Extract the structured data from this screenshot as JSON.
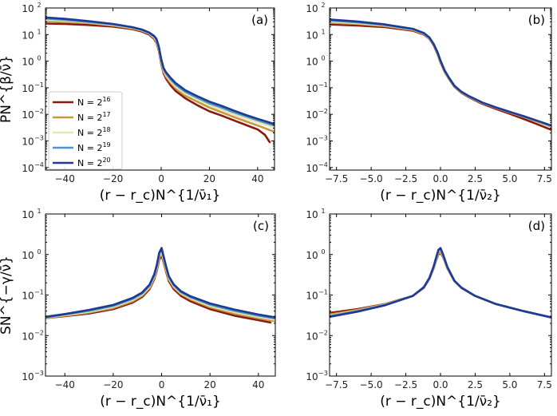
{
  "chart_data": [
    {
      "type": "line",
      "panel_label": "(a)",
      "ylabel": "PN^{β/ν̄}",
      "xlabel": "(r − r_c)N^{1/ν̄₁}",
      "yscale": "log",
      "xlim": [
        -48,
        47
      ],
      "ylim": [
        8e-05,
        100
      ],
      "xticks": [
        -40,
        -20,
        0,
        20,
        40
      ],
      "xtick_labels": [
        "−40",
        "−20",
        "0",
        "20",
        "40"
      ],
      "yticks": [
        0.0001,
        0.001,
        0.01,
        0.1,
        1,
        10,
        100
      ],
      "ytick_labels": [
        "10",
        "10",
        "10",
        "10",
        "10",
        "10",
        "10"
      ],
      "ytick_exps": [
        "−4",
        "−3",
        "−2",
        "−1",
        "0",
        "1",
        "2"
      ],
      "legend_position": "lower-left",
      "series": [
        {
          "name": "2",
          "exp": "16",
          "color": "#8b1a0e",
          "x": [
            -48,
            -40,
            -30,
            -20,
            -12,
            -8,
            -5,
            -3,
            -2,
            -1,
            0,
            1,
            2,
            4,
            6,
            10,
            15,
            20,
            25,
            30,
            35,
            40,
            43,
            45
          ],
          "y": [
            26,
            25,
            23,
            20,
            16,
            13,
            10,
            7,
            5,
            2.5,
            0.8,
            0.35,
            0.22,
            0.12,
            0.075,
            0.04,
            0.022,
            0.013,
            0.009,
            0.006,
            0.004,
            0.0027,
            0.0017,
            0.0009
          ]
        },
        {
          "name": "2",
          "exp": "17",
          "color": "#c8973e",
          "x": [
            -48,
            -40,
            -30,
            -20,
            -12,
            -8,
            -5,
            -3,
            -2,
            -1,
            0,
            1,
            2,
            4,
            6,
            10,
            15,
            20,
            25,
            30,
            35,
            40,
            47
          ],
          "y": [
            32,
            30,
            27,
            22,
            17,
            14,
            11,
            7.5,
            5.5,
            2.8,
            0.9,
            0.4,
            0.26,
            0.15,
            0.095,
            0.05,
            0.03,
            0.018,
            0.012,
            0.008,
            0.0055,
            0.0038,
            0.0022
          ]
        },
        {
          "name": "2",
          "exp": "18",
          "color": "#e6e7b5",
          "x": [
            -48,
            -40,
            -30,
            -20,
            -12,
            -8,
            -5,
            -3,
            -2,
            -1,
            0,
            1,
            2,
            4,
            6,
            10,
            15,
            20,
            25,
            30,
            35,
            40,
            47
          ],
          "y": [
            36,
            33,
            29,
            23,
            18,
            14.5,
            11,
            8,
            6,
            3,
            1,
            0.45,
            0.3,
            0.17,
            0.11,
            0.06,
            0.036,
            0.022,
            0.015,
            0.01,
            0.007,
            0.005,
            0.0032
          ]
        },
        {
          "name": "2",
          "exp": "19",
          "color": "#4a95c9",
          "x": [
            -48,
            -40,
            -30,
            -20,
            -12,
            -8,
            -5,
            -3,
            -2,
            -1,
            0,
            1,
            2,
            4,
            6,
            10,
            15,
            20,
            25,
            30,
            35,
            40,
            47
          ],
          "y": [
            40,
            36,
            30,
            24,
            18.5,
            15,
            11.5,
            8.5,
            6.5,
            3.3,
            1.1,
            0.5,
            0.34,
            0.2,
            0.13,
            0.07,
            0.042,
            0.026,
            0.018,
            0.012,
            0.0085,
            0.006,
            0.0038
          ]
        },
        {
          "name": "2",
          "exp": "20",
          "color": "#1f3a93",
          "x": [
            -48,
            -40,
            -30,
            -20,
            -12,
            -8,
            -5,
            -3,
            -2,
            -1,
            0,
            1,
            2,
            4,
            6,
            10,
            15,
            20,
            25,
            30,
            35,
            40,
            47
          ],
          "y": [
            44,
            39,
            32,
            25,
            19,
            15.5,
            12,
            9,
            7,
            3.6,
            1.2,
            0.55,
            0.38,
            0.23,
            0.15,
            0.08,
            0.048,
            0.03,
            0.021,
            0.014,
            0.0095,
            0.0068,
            0.0043
          ]
        }
      ]
    },
    {
      "type": "line",
      "panel_label": "(b)",
      "ylabel": "",
      "xlabel": "(r − r_c)N^{1/ν̄₂}",
      "yscale": "log",
      "xlim": [
        -8,
        8
      ],
      "ylim": [
        8e-05,
        100
      ],
      "xticks": [
        -7.5,
        -5,
        -2.5,
        0,
        2.5,
        5,
        7.5
      ],
      "xtick_labels": [
        "−7.5",
        "−5.0",
        "−2.5",
        "0.0",
        "2.5",
        "5.0",
        "7.5"
      ],
      "yticks": [
        0.0001,
        0.001,
        0.01,
        0.1,
        1,
        10,
        100
      ],
      "ytick_labels": [
        "10",
        "10",
        "10",
        "10",
        "10",
        "10",
        "10"
      ],
      "ytick_exps": [
        "−4",
        "−3",
        "−2",
        "−1",
        "0",
        "1",
        "2"
      ],
      "series": [
        {
          "color": "#8b1a0e",
          "x": [
            -8,
            -6,
            -4,
            -2,
            -1.2,
            -0.8,
            -0.5,
            -0.2,
            0,
            0.3,
            0.6,
            1,
            1.5,
            2,
            3,
            4,
            5,
            6,
            7,
            8
          ],
          "y": [
            24,
            22,
            19,
            14,
            10,
            7,
            4,
            1.8,
            0.9,
            0.4,
            0.22,
            0.11,
            0.065,
            0.045,
            0.025,
            0.016,
            0.0105,
            0.0067,
            0.0042,
            0.0026
          ]
        },
        {
          "color": "#c8973e",
          "x": [
            -8,
            -6,
            -4,
            -2,
            -1.2,
            -0.8,
            -0.5,
            -0.2,
            0,
            0.3,
            0.6,
            1,
            1.5,
            2,
            3,
            4,
            5,
            6,
            7,
            8
          ],
          "y": [
            28,
            25,
            21,
            15,
            10.5,
            7.2,
            4.2,
            1.9,
            0.95,
            0.42,
            0.23,
            0.115,
            0.068,
            0.047,
            0.027,
            0.0175,
            0.0118,
            0.008,
            0.0053,
            0.0034
          ]
        },
        {
          "color": "#e6e7b5",
          "x": [
            -8,
            -6,
            -4,
            -2,
            -1.2,
            -0.8,
            -0.5,
            -0.2,
            0,
            0.3,
            0.6,
            1,
            1.5,
            2,
            3,
            4,
            5,
            6,
            7,
            8
          ],
          "y": [
            31,
            27,
            22,
            15.5,
            11,
            7.4,
            4.3,
            2,
            1,
            0.43,
            0.235,
            0.117,
            0.069,
            0.048,
            0.027,
            0.0178,
            0.012,
            0.0082,
            0.0055,
            0.0036
          ]
        },
        {
          "color": "#4a95c9",
          "x": [
            -8,
            -6,
            -4,
            -2,
            -1.2,
            -0.8,
            -0.5,
            -0.2,
            0,
            0.3,
            0.6,
            1,
            1.5,
            2,
            3,
            4,
            5,
            6,
            7,
            8
          ],
          "y": [
            34,
            29,
            23,
            16,
            11.2,
            7.6,
            4.4,
            2.05,
            1.02,
            0.44,
            0.24,
            0.118,
            0.07,
            0.049,
            0.028,
            0.018,
            0.0122,
            0.0083,
            0.0056,
            0.0037
          ]
        },
        {
          "color": "#1f3a93",
          "x": [
            -8,
            -6,
            -4,
            -2,
            -1.2,
            -0.8,
            -0.5,
            -0.2,
            0,
            0.3,
            0.6,
            1,
            1.5,
            2,
            3,
            4,
            5,
            6,
            7,
            8
          ],
          "y": [
            37,
            31,
            24,
            16.5,
            11.5,
            7.8,
            4.5,
            2.1,
            1.05,
            0.45,
            0.245,
            0.12,
            0.071,
            0.05,
            0.028,
            0.0182,
            0.0124,
            0.0085,
            0.0057,
            0.0038
          ]
        }
      ]
    },
    {
      "type": "line",
      "panel_label": "(c)",
      "ylabel": "SN^{−γ/ν̄}",
      "xlabel": "(r − r_c)N^{1/ν̄₁}",
      "yscale": "log",
      "xlim": [
        -48,
        47
      ],
      "ylim": [
        0.001,
        10
      ],
      "xticks": [
        -40,
        -20,
        0,
        20,
        40
      ],
      "xtick_labels": [
        "−40",
        "−20",
        "0",
        "20",
        "40"
      ],
      "yticks": [
        0.001,
        0.01,
        0.1,
        1,
        10
      ],
      "ytick_labels": [
        "10",
        "10",
        "10",
        "10",
        "10"
      ],
      "ytick_exps": [
        "−3",
        "−2",
        "−1",
        "0",
        "1"
      ],
      "series": [
        {
          "color": "#8b1a0e",
          "x": [
            -48,
            -40,
            -30,
            -20,
            -12,
            -8,
            -5,
            -3,
            -2,
            -1,
            0,
            1,
            2,
            3,
            5,
            8,
            12,
            20,
            30,
            40,
            45
          ],
          "y": [
            0.027,
            0.03,
            0.035,
            0.045,
            0.065,
            0.09,
            0.14,
            0.25,
            0.4,
            0.75,
            0.95,
            0.6,
            0.35,
            0.22,
            0.14,
            0.095,
            0.07,
            0.045,
            0.031,
            0.024,
            0.021
          ]
        },
        {
          "color": "#c8973e",
          "x": [
            -48,
            -40,
            -30,
            -20,
            -12,
            -8,
            -5,
            -3,
            -2,
            -1,
            0,
            1,
            2,
            3,
            5,
            8,
            12,
            20,
            30,
            40,
            47
          ],
          "y": [
            0.027,
            0.031,
            0.037,
            0.048,
            0.07,
            0.097,
            0.15,
            0.27,
            0.44,
            0.85,
            1.05,
            0.65,
            0.38,
            0.24,
            0.155,
            0.105,
            0.078,
            0.05,
            0.035,
            0.027,
            0.0225
          ]
        },
        {
          "color": "#e6e7b5",
          "x": [
            -48,
            -40,
            -30,
            -20,
            -12,
            -8,
            -5,
            -3,
            -2,
            -1,
            0,
            1,
            2,
            3,
            5,
            8,
            12,
            20,
            30,
            40,
            47
          ],
          "y": [
            0.028,
            0.032,
            0.039,
            0.051,
            0.075,
            0.104,
            0.16,
            0.29,
            0.48,
            0.95,
            1.2,
            0.72,
            0.42,
            0.26,
            0.165,
            0.112,
            0.083,
            0.054,
            0.038,
            0.029,
            0.0245
          ]
        },
        {
          "color": "#4a95c9",
          "x": [
            -48,
            -40,
            -30,
            -20,
            -12,
            -8,
            -5,
            -3,
            -2,
            -1,
            0,
            1,
            2,
            3,
            5,
            8,
            12,
            20,
            30,
            40,
            47
          ],
          "y": [
            0.028,
            0.033,
            0.041,
            0.054,
            0.08,
            0.11,
            0.17,
            0.31,
            0.52,
            1.05,
            1.35,
            0.78,
            0.45,
            0.28,
            0.175,
            0.118,
            0.088,
            0.058,
            0.041,
            0.031,
            0.0265
          ]
        },
        {
          "color": "#1f3a93",
          "x": [
            -48,
            -40,
            -30,
            -20,
            -12,
            -8,
            -5,
            -3,
            -2,
            -1,
            0,
            1,
            2,
            3,
            5,
            8,
            12,
            20,
            30,
            40,
            47
          ],
          "y": [
            0.029,
            0.034,
            0.043,
            0.057,
            0.085,
            0.116,
            0.18,
            0.33,
            0.55,
            1.1,
            1.45,
            0.82,
            0.47,
            0.29,
            0.183,
            0.124,
            0.093,
            0.062,
            0.044,
            0.033,
            0.028
          ]
        }
      ]
    },
    {
      "type": "line",
      "panel_label": "(d)",
      "ylabel": "",
      "xlabel": "(r − r_c)N^{1/ν̄₂}",
      "yscale": "log",
      "xlim": [
        -8,
        8
      ],
      "ylim": [
        0.001,
        10
      ],
      "xticks": [
        -7.5,
        -5,
        -2.5,
        0,
        2.5,
        5,
        7.5
      ],
      "xtick_labels": [
        "−7.5",
        "−5.0",
        "−2.5",
        "0.0",
        "2.5",
        "5.0",
        "7.5"
      ],
      "yticks": [
        0.001,
        0.01,
        0.1,
        1,
        10
      ],
      "ytick_labels": [
        "10",
        "10",
        "10",
        "10",
        "10"
      ],
      "ytick_exps": [
        "−3",
        "−2",
        "−1",
        "0",
        "1"
      ],
      "series": [
        {
          "color": "#8b1a0e",
          "x": [
            -8,
            -6,
            -4,
            -2,
            -1.2,
            -0.8,
            -0.5,
            -0.3,
            -0.15,
            0,
            0.2,
            0.5,
            1,
            1.5,
            2.5,
            4,
            6,
            8
          ],
          "y": [
            0.036,
            0.045,
            0.06,
            0.095,
            0.15,
            0.25,
            0.45,
            0.75,
            1.0,
            1.1,
            0.85,
            0.45,
            0.22,
            0.15,
            0.095,
            0.06,
            0.04,
            0.028
          ]
        },
        {
          "color": "#c8973e",
          "x": [
            -8,
            -6,
            -4,
            -2,
            -1.2,
            -0.8,
            -0.5,
            -0.3,
            -0.15,
            0,
            0.2,
            0.5,
            1,
            1.5,
            2.5,
            4,
            6,
            8
          ],
          "y": [
            0.033,
            0.043,
            0.059,
            0.095,
            0.152,
            0.255,
            0.46,
            0.78,
            1.05,
            1.15,
            0.88,
            0.46,
            0.222,
            0.151,
            0.095,
            0.06,
            0.04,
            0.028
          ]
        },
        {
          "color": "#e6e7b5",
          "x": [
            -8,
            -6,
            -4,
            -2,
            -1.2,
            -0.8,
            -0.5,
            -0.3,
            -0.15,
            0,
            0.2,
            0.5,
            1,
            1.5,
            2.5,
            4,
            6,
            8
          ],
          "y": [
            0.031,
            0.041,
            0.058,
            0.095,
            0.154,
            0.26,
            0.48,
            0.82,
            1.2,
            1.35,
            0.92,
            0.47,
            0.224,
            0.152,
            0.095,
            0.06,
            0.04,
            0.028
          ]
        },
        {
          "color": "#4a95c9",
          "x": [
            -8,
            -6,
            -4,
            -2,
            -1.2,
            -0.8,
            -0.5,
            -0.3,
            -0.15,
            0,
            0.2,
            0.5,
            1,
            1.5,
            2.5,
            4,
            6,
            8
          ],
          "y": [
            0.03,
            0.04,
            0.057,
            0.095,
            0.155,
            0.262,
            0.49,
            0.85,
            1.25,
            1.4,
            0.95,
            0.48,
            0.225,
            0.152,
            0.095,
            0.06,
            0.04,
            0.028
          ]
        },
        {
          "color": "#1f3a93",
          "x": [
            -8,
            -6,
            -4,
            -2,
            -1.2,
            -0.8,
            -0.5,
            -0.3,
            -0.15,
            0,
            0.2,
            0.5,
            1,
            1.5,
            2.5,
            4,
            6,
            8
          ],
          "y": [
            0.029,
            0.039,
            0.056,
            0.095,
            0.156,
            0.265,
            0.5,
            0.88,
            1.3,
            1.45,
            0.97,
            0.49,
            0.226,
            0.153,
            0.095,
            0.06,
            0.04,
            0.028
          ]
        }
      ]
    }
  ],
  "legend": {
    "prefix": "N = "
  }
}
